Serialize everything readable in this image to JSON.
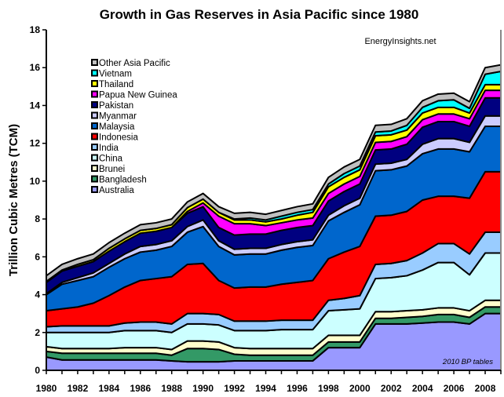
{
  "chart_data": {
    "type": "area",
    "stacked": true,
    "title": "Growth in Gas Reserves in Asia Pacific since 1980",
    "ylabel": "Trillion Cubic Metres  (TCM)",
    "xlabel": "",
    "ylim": [
      0,
      18
    ],
    "yticks": [
      0,
      2,
      4,
      6,
      8,
      10,
      12,
      14,
      16,
      18
    ],
    "xlim": [
      1980,
      2009
    ],
    "xtick_labels": [
      "1980",
      "1982",
      "1984",
      "1986",
      "1988",
      "1990",
      "1992",
      "1994",
      "1996",
      "1998",
      "2000",
      "2002",
      "2004",
      "2006",
      "2008"
    ],
    "grid": false,
    "legend_position": "top-left",
    "annotations": [
      "EnergyInsights.net",
      "2010 BP tables"
    ],
    "x": [
      1980,
      1981,
      1982,
      1983,
      1984,
      1985,
      1986,
      1987,
      1988,
      1989,
      1990,
      1991,
      1992,
      1993,
      1994,
      1995,
      1996,
      1997,
      1998,
      1999,
      2000,
      2001,
      2002,
      2003,
      2004,
      2005,
      2006,
      2007,
      2008,
      2009
    ],
    "series": [
      {
        "name": "Australia",
        "color": "#9999ff",
        "values": [
          0.7,
          0.55,
          0.55,
          0.55,
          0.55,
          0.55,
          0.55,
          0.55,
          0.5,
          0.45,
          0.45,
          0.45,
          0.5,
          0.5,
          0.5,
          0.5,
          0.5,
          0.5,
          1.2,
          1.2,
          1.2,
          2.45,
          2.45,
          2.45,
          2.5,
          2.55,
          2.55,
          2.45,
          3.0,
          3.0
        ]
      },
      {
        "name": "Bangladesh",
        "color": "#339966",
        "values": [
          0.3,
          0.35,
          0.35,
          0.35,
          0.35,
          0.35,
          0.35,
          0.35,
          0.3,
          0.7,
          0.7,
          0.65,
          0.35,
          0.3,
          0.3,
          0.3,
          0.3,
          0.3,
          0.3,
          0.3,
          0.3,
          0.3,
          0.3,
          0.35,
          0.35,
          0.4,
          0.4,
          0.35,
          0.35,
          0.35
        ]
      },
      {
        "name": "Brunei",
        "color": "#ffffcc",
        "values": [
          0.25,
          0.25,
          0.25,
          0.25,
          0.25,
          0.3,
          0.3,
          0.3,
          0.3,
          0.4,
          0.4,
          0.4,
          0.35,
          0.35,
          0.35,
          0.35,
          0.35,
          0.35,
          0.35,
          0.35,
          0.35,
          0.35,
          0.35,
          0.35,
          0.35,
          0.35,
          0.35,
          0.35,
          0.35,
          0.35
        ]
      },
      {
        "name": "China",
        "color": "#ccffff",
        "values": [
          0.75,
          0.85,
          0.85,
          0.85,
          0.85,
          0.9,
          0.9,
          0.9,
          0.9,
          0.9,
          0.9,
          0.9,
          0.9,
          0.95,
          0.95,
          1.0,
          1.0,
          1.0,
          1.3,
          1.35,
          1.4,
          1.75,
          1.8,
          1.85,
          2.1,
          2.4,
          2.4,
          1.9,
          2.5,
          2.5
        ]
      },
      {
        "name": "India",
        "color": "#99ccff",
        "values": [
          0.3,
          0.35,
          0.35,
          0.35,
          0.35,
          0.4,
          0.45,
          0.45,
          0.45,
          0.55,
          0.55,
          0.55,
          0.5,
          0.5,
          0.5,
          0.5,
          0.5,
          0.5,
          0.55,
          0.6,
          0.7,
          0.75,
          0.75,
          0.8,
          0.9,
          1.0,
          1.0,
          1.1,
          1.1,
          1.1
        ]
      },
      {
        "name": "Indonesia",
        "color": "#ff0000",
        "values": [
          0.85,
          0.9,
          1.0,
          1.2,
          1.6,
          1.9,
          2.2,
          2.3,
          2.5,
          2.6,
          2.65,
          1.8,
          1.75,
          1.8,
          1.8,
          1.9,
          2.0,
          2.1,
          2.2,
          2.45,
          2.6,
          2.55,
          2.55,
          2.6,
          2.8,
          2.5,
          2.5,
          2.95,
          3.2,
          3.2
        ]
      },
      {
        "name": "Malaysia",
        "color": "#0066cc",
        "values": [
          0.85,
          1.3,
          1.4,
          1.4,
          1.5,
          1.5,
          1.5,
          1.5,
          1.6,
          1.7,
          1.95,
          1.8,
          1.75,
          1.75,
          1.75,
          1.8,
          1.85,
          1.85,
          2.0,
          2.1,
          2.2,
          2.4,
          2.4,
          2.4,
          2.45,
          2.5,
          2.5,
          2.45,
          2.4,
          2.4
        ]
      },
      {
        "name": "Myanmar",
        "color": "#ccccff",
        "values": [
          0.05,
          0.1,
          0.15,
          0.2,
          0.2,
          0.25,
          0.3,
          0.3,
          0.3,
          0.3,
          0.35,
          0.3,
          0.3,
          0.3,
          0.3,
          0.3,
          0.3,
          0.3,
          0.3,
          0.35,
          0.35,
          0.35,
          0.35,
          0.35,
          0.5,
          0.55,
          0.55,
          0.5,
          0.55,
          0.55
        ]
      },
      {
        "name": "Pakistan",
        "color": "#000080",
        "values": [
          0.6,
          0.6,
          0.6,
          0.6,
          0.65,
          0.65,
          0.7,
          0.7,
          0.7,
          0.7,
          0.7,
          0.7,
          0.75,
          0.75,
          0.75,
          0.75,
          0.75,
          0.75,
          0.75,
          0.75,
          0.75,
          0.75,
          0.75,
          0.8,
          0.9,
          0.9,
          0.9,
          0.85,
          0.95,
          0.95
        ]
      },
      {
        "name": "Papua New Guinea",
        "color": "#ff00ff",
        "values": [
          0,
          0,
          0,
          0,
          0,
          0,
          0,
          0,
          0,
          0.1,
          0.2,
          0.6,
          0.6,
          0.55,
          0.45,
          0.4,
          0.4,
          0.4,
          0.4,
          0.4,
          0.4,
          0.4,
          0.4,
          0.4,
          0.4,
          0.4,
          0.4,
          0.4,
          0.4,
          0.4
        ]
      },
      {
        "name": "Thailand",
        "color": "#ffff00",
        "values": [
          0.05,
          0.05,
          0.1,
          0.1,
          0.15,
          0.15,
          0.15,
          0.15,
          0.15,
          0.2,
          0.2,
          0.2,
          0.2,
          0.2,
          0.2,
          0.2,
          0.25,
          0.3,
          0.35,
          0.35,
          0.35,
          0.35,
          0.35,
          0.35,
          0.35,
          0.35,
          0.35,
          0.3,
          0.3,
          0.3
        ]
      },
      {
        "name": "Vietnam",
        "color": "#00ffff",
        "values": [
          0,
          0,
          0,
          0,
          0,
          0,
          0,
          0,
          0,
          0,
          0,
          0,
          0.05,
          0.1,
          0.1,
          0.15,
          0.15,
          0.15,
          0.15,
          0.2,
          0.2,
          0.2,
          0.2,
          0.25,
          0.3,
          0.35,
          0.4,
          0.25,
          0.55,
          0.7
        ]
      },
      {
        "name": "Other Asia Pacific",
        "color": "#c0c0c0",
        "values": [
          0.3,
          0.3,
          0.3,
          0.3,
          0.3,
          0.3,
          0.3,
          0.3,
          0.3,
          0.3,
          0.3,
          0.3,
          0.3,
          0.3,
          0.3,
          0.3,
          0.3,
          0.3,
          0.35,
          0.35,
          0.35,
          0.35,
          0.35,
          0.35,
          0.35,
          0.35,
          0.35,
          0.35,
          0.35,
          0.35
        ]
      }
    ]
  }
}
